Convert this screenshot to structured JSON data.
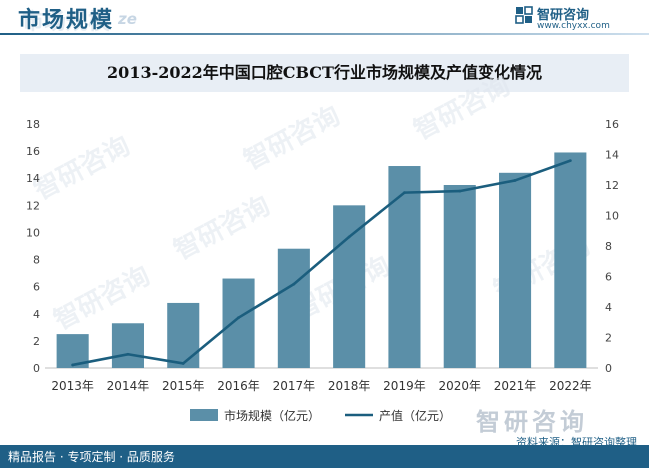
{
  "header": {
    "title": "市场规模",
    "watermark": "ze"
  },
  "brand": {
    "name": "智研咨询",
    "url": "www.chyxx.com",
    "color": "#1f5f86"
  },
  "watermark_text": "智研咨询",
  "footer": {
    "left": "精品报告 · 专项定制 · 品质服务",
    "source": "资料来源：智研咨询整理"
  },
  "chart_data": {
    "type": "bar",
    "title": "2013-2022年中国口腔CBCT行业市场规模及产值变化情况",
    "categories": [
      "2013年",
      "2014年",
      "2015年",
      "2016年",
      "2017年",
      "2018年",
      "2019年",
      "2020年",
      "2021年",
      "2022年"
    ],
    "series": [
      {
        "name": "市场规模（亿元）",
        "type": "bar",
        "axis": "left",
        "color": "#5b8fa8",
        "values": [
          2.5,
          3.3,
          4.8,
          6.6,
          8.8,
          12.0,
          14.9,
          13.5,
          14.4,
          15.9
        ]
      },
      {
        "name": "产值（亿元）",
        "type": "line",
        "axis": "right",
        "color": "#1b5e7e",
        "values": [
          0.2,
          0.9,
          0.3,
          3.3,
          5.5,
          8.6,
          11.5,
          11.6,
          12.3,
          13.6
        ]
      }
    ],
    "ylim_left": [
      0,
      18
    ],
    "yticks_left": [
      "0",
      "2",
      "4",
      "6",
      "8",
      "10",
      "12",
      "14",
      "16",
      "18"
    ],
    "ylim_right": [
      0,
      16
    ],
    "yticks_right": [
      "0",
      "2",
      "4",
      "6",
      "8",
      "10",
      "12",
      "14",
      "16"
    ],
    "legend": "bottom-center"
  }
}
